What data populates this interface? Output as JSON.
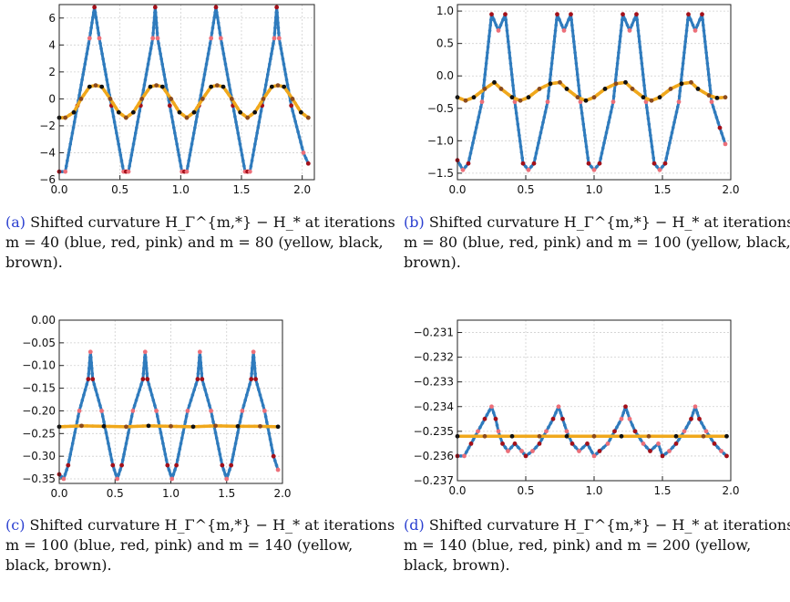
{
  "captions": [
    {
      "tag": "(a)",
      "text": "Shifted curvature H_Γ^{m,*} − H_* at iterations m = 40 (blue, red, pink) and m = 80 (yellow, black, brown)."
    },
    {
      "tag": "(b)",
      "text": "Shifted curvature H_Γ^{m,*} − H_* at iterations m = 80 (blue, red, pink) and m = 100 (yellow, black, brown)."
    },
    {
      "tag": "(c)",
      "text": "Shifted curvature H_Γ^{m,*} − H_* at iterations m = 100 (blue, red, pink) and m = 140 (yellow, black, brown)."
    },
    {
      "tag": "(d)",
      "text": "Shifted curvature H_Γ^{m,*} − H_* at iterations m = 140 (blue, red, pink) and m = 200 (yellow, black, brown)."
    }
  ],
  "colors": {
    "blue": "#2f7bbd",
    "red": "#a3101a",
    "pink": "#ec6f79",
    "yellow": "#f0a81c",
    "black": "#111111",
    "brown": "#8b4b1e"
  },
  "chart_data": [
    {
      "type": "scatter",
      "xlim": [
        0,
        2.1
      ],
      "ylim": [
        -6,
        7
      ],
      "xticks": [
        0.0,
        0.5,
        1.0,
        1.5,
        2.0
      ],
      "xtick_labels": [
        "0.0",
        "0.5",
        "1.0",
        "1.5",
        "2.0"
      ],
      "yticks": [
        -6,
        -4,
        -2,
        0,
        2,
        4,
        6
      ],
      "ytick_labels": [
        "−6",
        "−4",
        "−2",
        "0",
        "2",
        "4",
        "6"
      ],
      "grid": true,
      "series": [
        {
          "color": "blue",
          "x": [
            0,
            0.05,
            0.15,
            0.25,
            0.29,
            0.33,
            0.43,
            0.53,
            0.55,
            0.57,
            0.67,
            0.77,
            0.79,
            0.81,
            0.91,
            1.01,
            1.03,
            1.05,
            1.15,
            1.25,
            1.29,
            1.33,
            1.43,
            1.53,
            1.55,
            1.57,
            1.67,
            1.77,
            1.79,
            1.81,
            1.91,
            2.01,
            2.05
          ],
          "y": [
            -5.4,
            -5.4,
            -0.5,
            4.5,
            6.8,
            4.5,
            -0.5,
            -5.4,
            -5.4,
            -5.4,
            -0.5,
            4.5,
            6.8,
            4.5,
            -0.5,
            -5.4,
            -5.4,
            -5.4,
            -0.5,
            4.5,
            6.8,
            4.5,
            -0.5,
            -5.4,
            -5.4,
            -5.4,
            -0.5,
            4.5,
            6.8,
            4.5,
            -0.5,
            -4.0,
            -4.8
          ]
        },
        {
          "color": "yellow",
          "x": [
            0,
            0.05,
            0.12,
            0.18,
            0.25,
            0.3,
            0.35,
            0.42,
            0.49,
            0.55,
            0.61,
            0.68,
            0.75,
            0.8,
            0.85,
            0.92,
            0.99,
            1.05,
            1.11,
            1.18,
            1.25,
            1.3,
            1.35,
            1.42,
            1.49,
            1.55,
            1.61,
            1.68,
            1.75,
            1.8,
            1.85,
            1.92,
            1.99,
            2.05
          ],
          "y": [
            -1.4,
            -1.4,
            -1.0,
            0.0,
            0.9,
            1.0,
            0.9,
            0.0,
            -1.0,
            -1.4,
            -1.0,
            0.0,
            0.9,
            1.0,
            0.9,
            0.0,
            -1.0,
            -1.4,
            -1.0,
            0.0,
            0.9,
            1.0,
            0.9,
            0.0,
            -1.0,
            -1.4,
            -1.0,
            0.0,
            0.9,
            1.0,
            0.9,
            0.0,
            -1.0,
            -1.4
          ]
        }
      ]
    },
    {
      "type": "scatter",
      "xlim": [
        0,
        2.0
      ],
      "ylim": [
        -1.6,
        1.1
      ],
      "xticks": [
        0.0,
        0.5,
        1.0,
        1.5,
        2.0
      ],
      "xtick_labels": [
        "0.0",
        "0.5",
        "1.0",
        "1.5",
        "2.0"
      ],
      "yticks": [
        -1.5,
        -1.0,
        -0.5,
        0.0,
        0.5,
        1.0
      ],
      "ytick_labels": [
        "−1.5",
        "−1.0",
        "−0.5",
        "0.0",
        "0.5",
        "1.0"
      ],
      "grid": true,
      "series": [
        {
          "color": "blue",
          "x": [
            0,
            0.04,
            0.08,
            0.18,
            0.25,
            0.3,
            0.35,
            0.42,
            0.48,
            0.52,
            0.56,
            0.66,
            0.73,
            0.78,
            0.83,
            0.9,
            0.96,
            1.0,
            1.04,
            1.14,
            1.21,
            1.26,
            1.31,
            1.38,
            1.44,
            1.48,
            1.52,
            1.62,
            1.69,
            1.74,
            1.79,
            1.86,
            1.92,
            1.96
          ],
          "y": [
            -1.3,
            -1.45,
            -1.35,
            -0.4,
            0.95,
            0.7,
            0.95,
            -0.4,
            -1.35,
            -1.45,
            -1.35,
            -0.4,
            0.95,
            0.7,
            0.95,
            -0.4,
            -1.35,
            -1.45,
            -1.35,
            -0.4,
            0.95,
            0.7,
            0.95,
            -0.4,
            -1.35,
            -1.45,
            -1.35,
            -0.4,
            0.95,
            0.7,
            0.95,
            -0.4,
            -0.8,
            -1.05
          ]
        },
        {
          "color": "yellow",
          "x": [
            0,
            0.06,
            0.12,
            0.2,
            0.27,
            0.32,
            0.4,
            0.46,
            0.52,
            0.6,
            0.68,
            0.75,
            0.8,
            0.88,
            0.94,
            1.0,
            1.08,
            1.16,
            1.23,
            1.28,
            1.36,
            1.42,
            1.48,
            1.56,
            1.64,
            1.71,
            1.76,
            1.84,
            1.9,
            1.96
          ],
          "y": [
            -0.33,
            -0.38,
            -0.33,
            -0.2,
            -0.1,
            -0.2,
            -0.33,
            -0.38,
            -0.33,
            -0.2,
            -0.12,
            -0.1,
            -0.2,
            -0.33,
            -0.38,
            -0.33,
            -0.2,
            -0.12,
            -0.1,
            -0.2,
            -0.33,
            -0.38,
            -0.33,
            -0.2,
            -0.12,
            -0.1,
            -0.2,
            -0.3,
            -0.34,
            -0.33
          ]
        }
      ]
    },
    {
      "type": "scatter",
      "xlim": [
        0,
        2.0
      ],
      "ylim": [
        -0.36,
        0.0
      ],
      "xticks": [
        0.0,
        0.5,
        1.0,
        1.5,
        2.0
      ],
      "xtick_labels": [
        "0.0",
        "0.5",
        "1.0",
        "1.5",
        "2.0"
      ],
      "yticks": [
        0.0,
        -0.05,
        -0.1,
        -0.15,
        -0.2,
        -0.25,
        -0.3,
        -0.35
      ],
      "ytick_labels": [
        "0.00",
        "−0.05",
        "−0.10",
        "−0.15",
        "−0.20",
        "−0.25",
        "−0.30",
        "−0.35"
      ],
      "grid": true,
      "series": [
        {
          "color": "blue",
          "x": [
            0,
            0.04,
            0.08,
            0.18,
            0.26,
            0.28,
            0.3,
            0.38,
            0.48,
            0.52,
            0.56,
            0.66,
            0.75,
            0.77,
            0.79,
            0.87,
            0.97,
            1.01,
            1.05,
            1.15,
            1.24,
            1.26,
            1.28,
            1.36,
            1.46,
            1.5,
            1.54,
            1.64,
            1.72,
            1.74,
            1.76,
            1.84,
            1.92,
            1.96
          ],
          "y": [
            -0.34,
            -0.35,
            -0.32,
            -0.2,
            -0.13,
            -0.07,
            -0.13,
            -0.2,
            -0.32,
            -0.35,
            -0.32,
            -0.2,
            -0.13,
            -0.07,
            -0.13,
            -0.2,
            -0.32,
            -0.35,
            -0.32,
            -0.2,
            -0.13,
            -0.07,
            -0.13,
            -0.2,
            -0.32,
            -0.35,
            -0.32,
            -0.2,
            -0.13,
            -0.07,
            -0.13,
            -0.2,
            -0.3,
            -0.33
          ]
        },
        {
          "color": "yellow",
          "x": [
            0,
            0.2,
            0.4,
            0.6,
            0.8,
            1.0,
            1.2,
            1.4,
            1.6,
            1.8,
            1.96
          ],
          "y": [
            -0.235,
            -0.233,
            -0.234,
            -0.235,
            -0.233,
            -0.234,
            -0.235,
            -0.233,
            -0.234,
            -0.234,
            -0.235
          ]
        }
      ]
    },
    {
      "type": "scatter",
      "xlim": [
        0,
        2.0
      ],
      "ylim": [
        -0.237,
        -0.2305
      ],
      "xticks": [
        0.0,
        0.5,
        1.0,
        1.5,
        2.0
      ],
      "xtick_labels": [
        "0.0",
        "0.5",
        "1.0",
        "1.5",
        "2.0"
      ],
      "yticks": [
        -0.231,
        -0.232,
        -0.233,
        -0.234,
        -0.235,
        -0.236,
        -0.237
      ],
      "ytick_labels": [
        "−0.231",
        "−0.232",
        "−0.233",
        "−0.234",
        "−0.235",
        "−0.236",
        "−0.237"
      ],
      "grid": true,
      "series": [
        {
          "color": "blue",
          "x": [
            0,
            0.05,
            0.1,
            0.15,
            0.2,
            0.25,
            0.28,
            0.3,
            0.33,
            0.37,
            0.42,
            0.47,
            0.5,
            0.55,
            0.6,
            0.65,
            0.7,
            0.74,
            0.77,
            0.8,
            0.84,
            0.89,
            0.95,
            1.0,
            1.04,
            1.1,
            1.15,
            1.2,
            1.23,
            1.26,
            1.3,
            1.36,
            1.41,
            1.47,
            1.5,
            1.55,
            1.6,
            1.66,
            1.71,
            1.74,
            1.77,
            1.82,
            1.88,
            1.93,
            1.97
          ],
          "y": [
            -0.236,
            -0.236,
            -0.2355,
            -0.235,
            -0.2345,
            -0.234,
            -0.2345,
            -0.235,
            -0.2355,
            -0.2358,
            -0.2355,
            -0.2358,
            -0.236,
            -0.2358,
            -0.2355,
            -0.235,
            -0.2345,
            -0.234,
            -0.2345,
            -0.235,
            -0.2355,
            -0.2358,
            -0.2355,
            -0.236,
            -0.2358,
            -0.2355,
            -0.235,
            -0.2345,
            -0.234,
            -0.2345,
            -0.235,
            -0.2355,
            -0.2358,
            -0.2355,
            -0.236,
            -0.2358,
            -0.2355,
            -0.235,
            -0.2345,
            -0.234,
            -0.2345,
            -0.235,
            -0.2355,
            -0.2358,
            -0.236
          ]
        },
        {
          "color": "yellow",
          "x": [
            0,
            0.2,
            0.4,
            0.6,
            0.8,
            1.0,
            1.2,
            1.4,
            1.6,
            1.8,
            1.97
          ],
          "y": [
            -0.2352,
            -0.2352,
            -0.2352,
            -0.2352,
            -0.2352,
            -0.2352,
            -0.2352,
            -0.2352,
            -0.2352,
            -0.2352,
            -0.2352
          ]
        }
      ]
    }
  ]
}
